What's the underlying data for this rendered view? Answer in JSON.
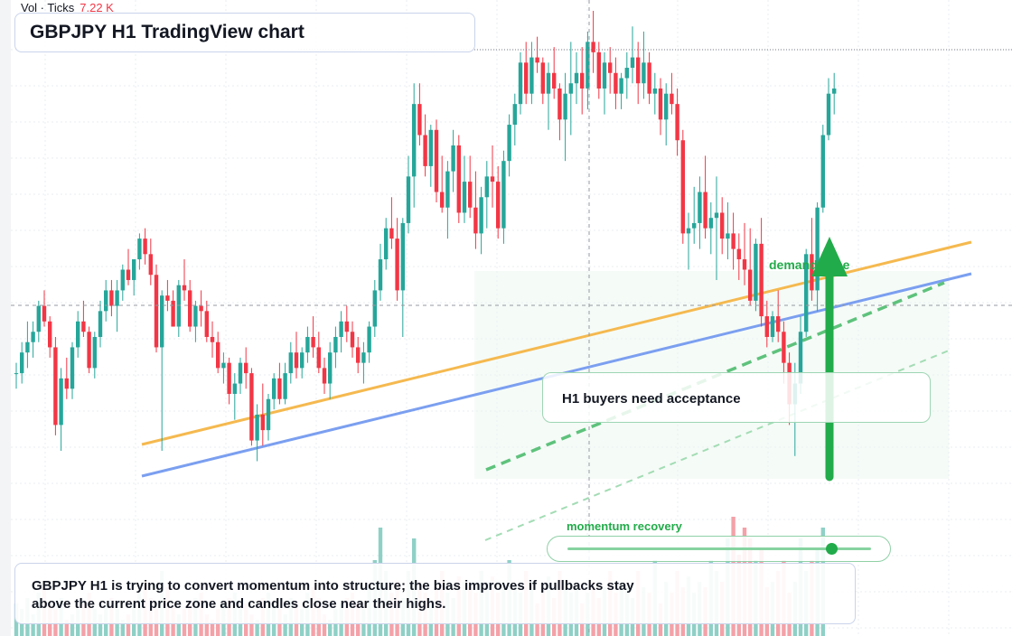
{
  "title": "GBPJPY H1 TradingView chart",
  "volume_legend": {
    "label": "Vol · Ticks",
    "value": "7.22 K"
  },
  "annotations": {
    "acceptance": "H1 buyers need acceptance",
    "demand_zone": "demand zone",
    "momentum": "momentum recovery",
    "momentum_level": 0.87,
    "summary": "GBPJPY H1 is trying to convert momentum into structure; the bias improves if pullbacks stay above the current price zone and candles close near their highs."
  },
  "colors": {
    "bull": "#26a69a",
    "bear": "#f23645",
    "trend_orange": "#f5b94f",
    "trend_blue": "#7b9ff0",
    "signal_green": "#22ab4a",
    "grid": "#e9ecf2"
  },
  "chart_data": {
    "type": "candlestick",
    "ylim": [
      0,
      100
    ],
    "candles": [
      [
        30,
        32,
        27,
        30
      ],
      [
        30,
        36,
        28,
        34
      ],
      [
        34,
        40,
        31,
        36
      ],
      [
        36,
        40,
        33,
        38
      ],
      [
        38,
        44,
        36,
        43
      ],
      [
        43,
        46,
        39,
        40
      ],
      [
        40,
        41,
        33,
        35
      ],
      [
        35,
        37,
        18,
        20
      ],
      [
        20,
        31,
        15,
        29
      ],
      [
        29,
        33,
        25,
        27
      ],
      [
        27,
        36,
        25,
        35
      ],
      [
        35,
        42,
        33,
        40
      ],
      [
        40,
        44,
        37,
        38
      ],
      [
        38,
        39,
        30,
        31
      ],
      [
        31,
        38,
        29,
        37
      ],
      [
        37,
        44,
        35,
        42
      ],
      [
        42,
        48,
        40,
        46
      ],
      [
        46,
        48,
        41,
        43
      ],
      [
        43,
        48,
        38,
        46
      ],
      [
        46,
        51,
        44,
        50
      ],
      [
        50,
        54,
        47,
        48
      ],
      [
        48,
        52,
        45,
        52
      ],
      [
        52,
        57,
        50,
        56
      ],
      [
        56,
        58,
        51,
        53
      ],
      [
        53,
        56,
        47,
        49
      ],
      [
        49,
        51,
        34,
        35
      ],
      [
        35,
        46,
        15,
        45
      ],
      [
        45,
        48,
        42,
        44
      ],
      [
        44,
        46,
        39,
        39
      ],
      [
        39,
        48,
        37,
        47
      ],
      [
        47,
        52,
        44,
        46
      ],
      [
        46,
        48,
        38,
        39
      ],
      [
        39,
        44,
        36,
        43
      ],
      [
        43,
        46,
        39,
        42
      ],
      [
        42,
        44,
        36,
        37
      ],
      [
        37,
        40,
        33,
        36
      ],
      [
        36,
        38,
        30,
        31
      ],
      [
        31,
        34,
        28,
        32
      ],
      [
        32,
        33,
        24,
        26
      ],
      [
        26,
        30,
        21,
        28
      ],
      [
        28,
        33,
        26,
        32
      ],
      [
        32,
        35,
        27,
        30
      ],
      [
        30,
        31,
        16,
        17
      ],
      [
        17,
        24,
        13,
        22
      ],
      [
        22,
        28,
        16,
        19
      ],
      [
        19,
        26,
        17,
        25
      ],
      [
        25,
        30,
        23,
        29
      ],
      [
        29,
        32,
        24,
        25
      ],
      [
        25,
        32,
        24,
        30
      ],
      [
        30,
        36,
        28,
        34
      ],
      [
        34,
        38,
        29,
        31
      ],
      [
        31,
        35,
        29,
        34
      ],
      [
        34,
        39,
        32,
        37
      ],
      [
        37,
        41,
        33,
        35
      ],
      [
        35,
        38,
        30,
        31
      ],
      [
        31,
        33,
        26,
        28
      ],
      [
        28,
        36,
        25,
        34
      ],
      [
        34,
        39,
        31,
        37
      ],
      [
        37,
        42,
        34,
        40
      ],
      [
        40,
        43,
        36,
        38
      ],
      [
        38,
        40,
        33,
        35
      ],
      [
        35,
        37,
        30,
        32
      ],
      [
        32,
        36,
        28,
        34
      ],
      [
        34,
        40,
        32,
        39
      ],
      [
        39,
        48,
        37,
        46
      ],
      [
        46,
        55,
        44,
        52
      ],
      [
        52,
        60,
        50,
        58
      ],
      [
        58,
        64,
        54,
        56
      ],
      [
        56,
        60,
        44,
        46
      ],
      [
        46,
        60,
        37,
        59
      ],
      [
        59,
        72,
        57,
        68
      ],
      [
        68,
        86,
        62,
        82
      ],
      [
        82,
        86,
        74,
        76
      ],
      [
        76,
        80,
        68,
        70
      ],
      [
        70,
        78,
        66,
        77
      ],
      [
        77,
        79,
        63,
        65
      ],
      [
        65,
        72,
        61,
        62
      ],
      [
        62,
        71,
        56,
        69
      ],
      [
        69,
        77,
        65,
        74
      ],
      [
        74,
        76,
        59,
        61
      ],
      [
        61,
        72,
        59,
        67
      ],
      [
        67,
        72,
        60,
        62
      ],
      [
        62,
        69,
        54,
        57
      ],
      [
        57,
        66,
        53,
        64
      ],
      [
        64,
        71,
        58,
        68
      ],
      [
        68,
        74,
        62,
        67
      ],
      [
        67,
        70,
        56,
        58
      ],
      [
        58,
        73,
        55,
        71
      ],
      [
        71,
        80,
        68,
        78
      ],
      [
        78,
        84,
        74,
        82
      ],
      [
        82,
        92,
        80,
        90
      ],
      [
        90,
        94,
        82,
        84
      ],
      [
        84,
        94,
        82,
        91
      ],
      [
        91,
        95,
        88,
        90
      ],
      [
        90,
        91,
        82,
        84
      ],
      [
        84,
        90,
        77,
        88
      ],
      [
        88,
        93,
        83,
        85
      ],
      [
        85,
        86,
        75,
        79
      ],
      [
        79,
        88,
        71,
        84
      ],
      [
        84,
        94,
        76,
        86
      ],
      [
        86,
        92,
        82,
        88
      ],
      [
        88,
        93,
        80,
        85
      ],
      [
        85,
        96,
        81,
        94
      ],
      [
        94,
        100,
        88,
        92
      ],
      [
        92,
        94,
        83,
        85
      ],
      [
        85,
        92,
        80,
        90
      ],
      [
        90,
        93,
        84,
        88
      ],
      [
        88,
        91,
        81,
        84
      ],
      [
        84,
        88,
        81,
        87
      ],
      [
        87,
        92,
        83,
        89
      ],
      [
        89,
        97,
        86,
        91
      ],
      [
        91,
        94,
        82,
        86
      ],
      [
        86,
        96,
        83,
        90
      ],
      [
        90,
        92,
        82,
        84
      ],
      [
        84,
        88,
        80,
        85
      ],
      [
        85,
        87,
        76,
        79
      ],
      [
        79,
        86,
        74,
        84
      ],
      [
        84,
        88,
        80,
        82
      ],
      [
        82,
        85,
        72,
        75
      ],
      [
        75,
        77,
        55,
        57
      ],
      [
        57,
        61,
        50,
        58
      ],
      [
        58,
        66,
        55,
        59
      ],
      [
        59,
        68,
        54,
        65
      ],
      [
        65,
        72,
        56,
        58
      ],
      [
        58,
        63,
        53,
        60
      ],
      [
        60,
        68,
        48,
        61
      ],
      [
        61,
        64,
        53,
        56
      ],
      [
        56,
        63,
        52,
        57
      ],
      [
        57,
        61,
        50,
        54
      ],
      [
        54,
        57,
        48,
        52
      ],
      [
        52,
        59,
        47,
        50
      ],
      [
        50,
        58,
        43,
        44
      ],
      [
        44,
        56,
        42,
        55
      ],
      [
        55,
        60,
        39,
        41
      ],
      [
        41,
        44,
        35,
        37
      ],
      [
        37,
        42,
        36,
        41
      ],
      [
        41,
        46,
        36,
        38
      ],
      [
        38,
        40,
        28,
        32
      ],
      [
        32,
        34,
        20,
        24
      ],
      [
        24,
        32,
        14,
        28
      ],
      [
        28,
        41,
        26,
        38
      ],
      [
        38,
        54,
        37,
        53
      ],
      [
        53,
        60,
        44,
        46
      ],
      [
        46,
        63,
        42,
        62
      ],
      [
        62,
        78,
        61,
        76
      ],
      [
        76,
        87,
        75,
        84
      ],
      [
        84,
        88,
        80,
        85
      ]
    ],
    "volumes": [
      6,
      5,
      7,
      4,
      8,
      9,
      6,
      5,
      7,
      3,
      4,
      5,
      6,
      8,
      5,
      4,
      6,
      7,
      5,
      3,
      4,
      6,
      8,
      10,
      7,
      5,
      12,
      9,
      6,
      4,
      5,
      6,
      7,
      8,
      4,
      3,
      5,
      6,
      7,
      8,
      5,
      6,
      4,
      3,
      7,
      8,
      6,
      5,
      4,
      7,
      6,
      5,
      8,
      9,
      7,
      4,
      3,
      5,
      6,
      7,
      8,
      6,
      5,
      9,
      14,
      20,
      12,
      8,
      10,
      7,
      12,
      18,
      10,
      8,
      6,
      9,
      12,
      8,
      7,
      11,
      10,
      9,
      8,
      12,
      10,
      11,
      8,
      10,
      14,
      9,
      8,
      12,
      10,
      6,
      9,
      11,
      7,
      12,
      10,
      8,
      9,
      6,
      8,
      10,
      7,
      9,
      12,
      8,
      10,
      9,
      7,
      12,
      9,
      8,
      14,
      6,
      10,
      8,
      12,
      9,
      11,
      8,
      10,
      9,
      14,
      12,
      10,
      18,
      22,
      15,
      20,
      18,
      14,
      16,
      9,
      10,
      12,
      14,
      8,
      10,
      18,
      12,
      14,
      16,
      20
    ]
  }
}
